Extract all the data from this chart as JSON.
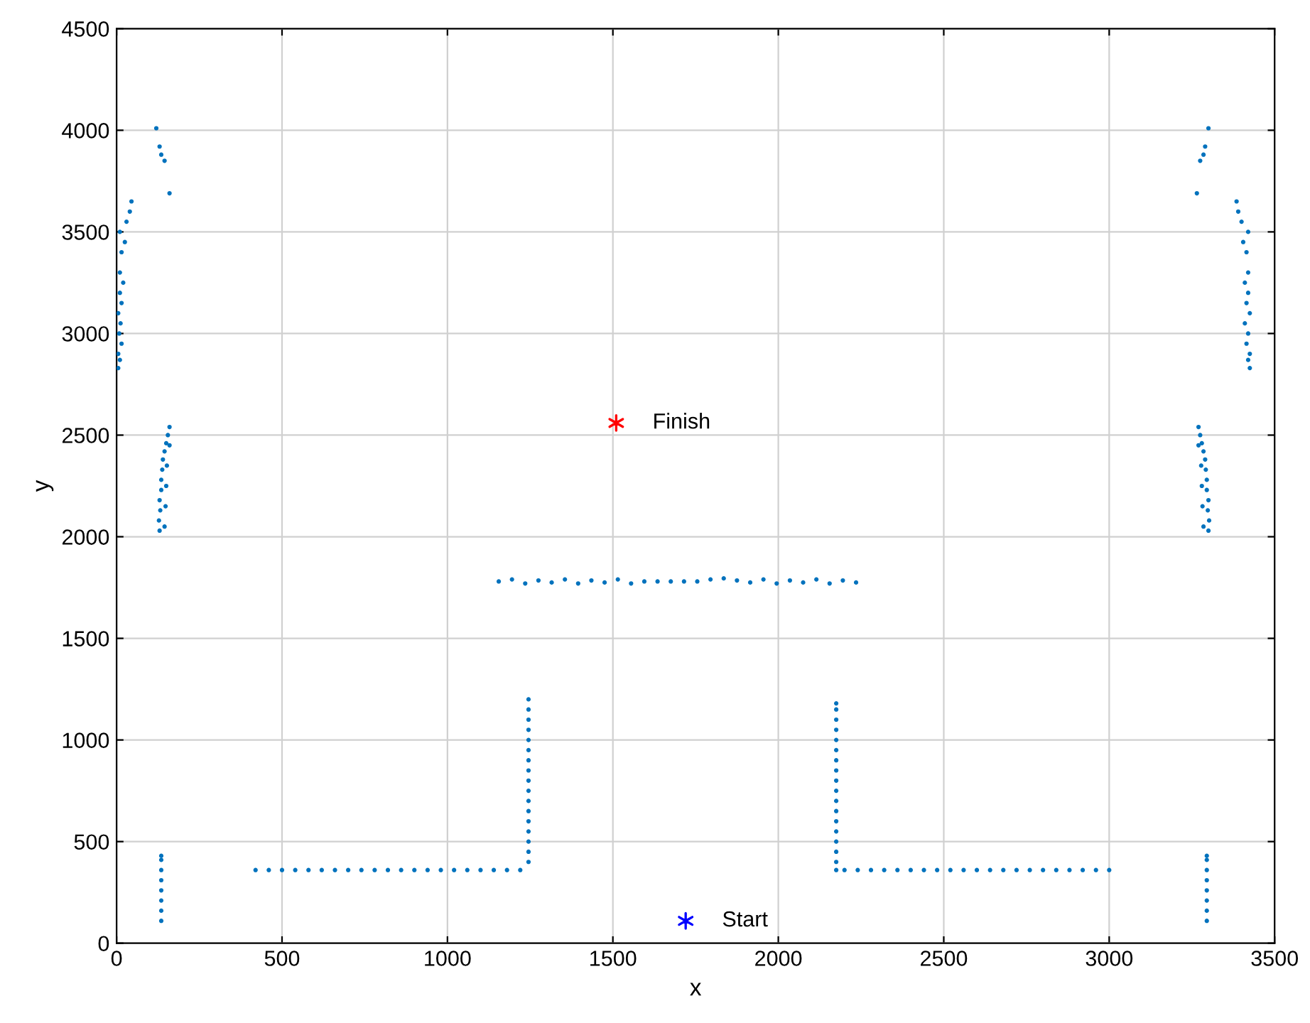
{
  "chart_data": {
    "type": "scatter",
    "xlabel": "x",
    "ylabel": "y",
    "xlim": [
      0,
      3500
    ],
    "ylim": [
      0,
      4500
    ],
    "xticks": [
      0,
      500,
      1000,
      1500,
      2000,
      2500,
      3000,
      3500
    ],
    "yticks": [
      0,
      500,
      1000,
      1500,
      2000,
      2500,
      3000,
      3500,
      4000,
      4500
    ],
    "grid": true,
    "legend": false,
    "series": [
      {
        "color": "#0072bd",
        "marker": "circle",
        "x": [
          135,
          135,
          135,
          135,
          135,
          135,
          135,
          135,
          420,
          460,
          500,
          540,
          580,
          620,
          660,
          700,
          740,
          780,
          820,
          860,
          900,
          940,
          980,
          1020,
          1060,
          1100,
          1140,
          1180,
          1220,
          1245,
          1245,
          1245,
          1245,
          1245,
          1245,
          1245,
          1245,
          1245,
          1245,
          1245,
          1245,
          1245,
          1245,
          1245,
          1245,
          1245,
          2175,
          2175,
          2175,
          2175,
          2175,
          2175,
          2175,
          2175,
          2175,
          2175,
          2175,
          2175,
          2175,
          2175,
          2175,
          2175,
          2175,
          2175,
          2200,
          2240,
          2280,
          2320,
          2360,
          2400,
          2440,
          2480,
          2520,
          2560,
          2600,
          2640,
          2680,
          2720,
          2760,
          2800,
          2840,
          2880,
          2920,
          2960,
          3000,
          3295,
          3295,
          3295,
          3295,
          3295,
          3295,
          3295,
          3295,
          1155,
          1195,
          1235,
          1275,
          1315,
          1355,
          1395,
          1435,
          1475,
          1515,
          1555,
          1595,
          1635,
          1675,
          1715,
          1755,
          1795,
          1835,
          1875,
          1915,
          1955,
          1995,
          2035,
          2075,
          2115,
          2155,
          2195,
          2235,
          130,
          128,
          132,
          130,
          135,
          135,
          138,
          140,
          145,
          150,
          155,
          160,
          145,
          148,
          150,
          152,
          160,
          3300,
          3302,
          3298,
          3300,
          3295,
          3295,
          3292,
          3290,
          3285,
          3280,
          3275,
          3270,
          3285,
          3282,
          3280,
          3278,
          3270,
          5,
          10,
          5,
          15,
          8,
          12,
          5,
          15,
          10,
          20,
          10,
          15,
          25,
          10,
          30,
          40,
          45,
          120,
          130,
          135,
          145,
          160,
          3425,
          3420,
          3425,
          3415,
          3420,
          3410,
          3425,
          3415,
          3420,
          3410,
          3420,
          3415,
          3405,
          3420,
          3400,
          3390,
          3385,
          3300,
          3290,
          3285,
          3275,
          3265
        ],
        "values": [
          110,
          160,
          210,
          260,
          310,
          360,
          410,
          430,
          360,
          360,
          360,
          360,
          360,
          360,
          360,
          360,
          360,
          360,
          360,
          360,
          360,
          360,
          360,
          360,
          360,
          360,
          360,
          360,
          360,
          400,
          450,
          500,
          550,
          600,
          650,
          700,
          750,
          800,
          850,
          900,
          950,
          1000,
          1050,
          1100,
          1150,
          1200,
          360,
          400,
          450,
          500,
          550,
          600,
          650,
          700,
          750,
          800,
          850,
          900,
          950,
          1000,
          1050,
          1100,
          1150,
          1180,
          360,
          360,
          360,
          360,
          360,
          360,
          360,
          360,
          360,
          360,
          360,
          360,
          360,
          360,
          360,
          360,
          360,
          360,
          360,
          360,
          360,
          110,
          160,
          210,
          260,
          310,
          360,
          410,
          430,
          1780,
          1790,
          1770,
          1785,
          1775,
          1790,
          1770,
          1785,
          1775,
          1790,
          1770,
          1780,
          1780,
          1780,
          1780,
          1780,
          1790,
          1795,
          1785,
          1775,
          1790,
          1770,
          1785,
          1775,
          1790,
          1770,
          1785,
          1775,
          2030,
          2080,
          2130,
          2180,
          2230,
          2280,
          2330,
          2380,
          2420,
          2460,
          2500,
          2540,
          2050,
          2150,
          2250,
          2350,
          2450,
          2030,
          2080,
          2130,
          2180,
          2230,
          2280,
          2330,
          2380,
          2420,
          2460,
          2500,
          2540,
          2050,
          2150,
          2250,
          2350,
          2450,
          2830,
          2870,
          2900,
          2950,
          3000,
          3050,
          3100,
          3150,
          3200,
          3250,
          3300,
          3400,
          3450,
          3500,
          3550,
          3600,
          3650,
          4010,
          3920,
          3880,
          3850,
          3690,
          2830,
          2870,
          2900,
          2950,
          3000,
          3050,
          3100,
          3150,
          3200,
          3250,
          3300,
          3400,
          3450,
          3500,
          3550,
          3600,
          3650,
          4010,
          3920,
          3880,
          3850,
          3690
        ]
      },
      {
        "name": "Start",
        "color": "#0000ff",
        "marker": "cross",
        "x": [
          1720
        ],
        "values": [
          110
        ]
      },
      {
        "name": "Finish",
        "color": "#ff0000",
        "marker": "cross",
        "x": [
          1510
        ],
        "values": [
          2560
        ]
      }
    ]
  }
}
